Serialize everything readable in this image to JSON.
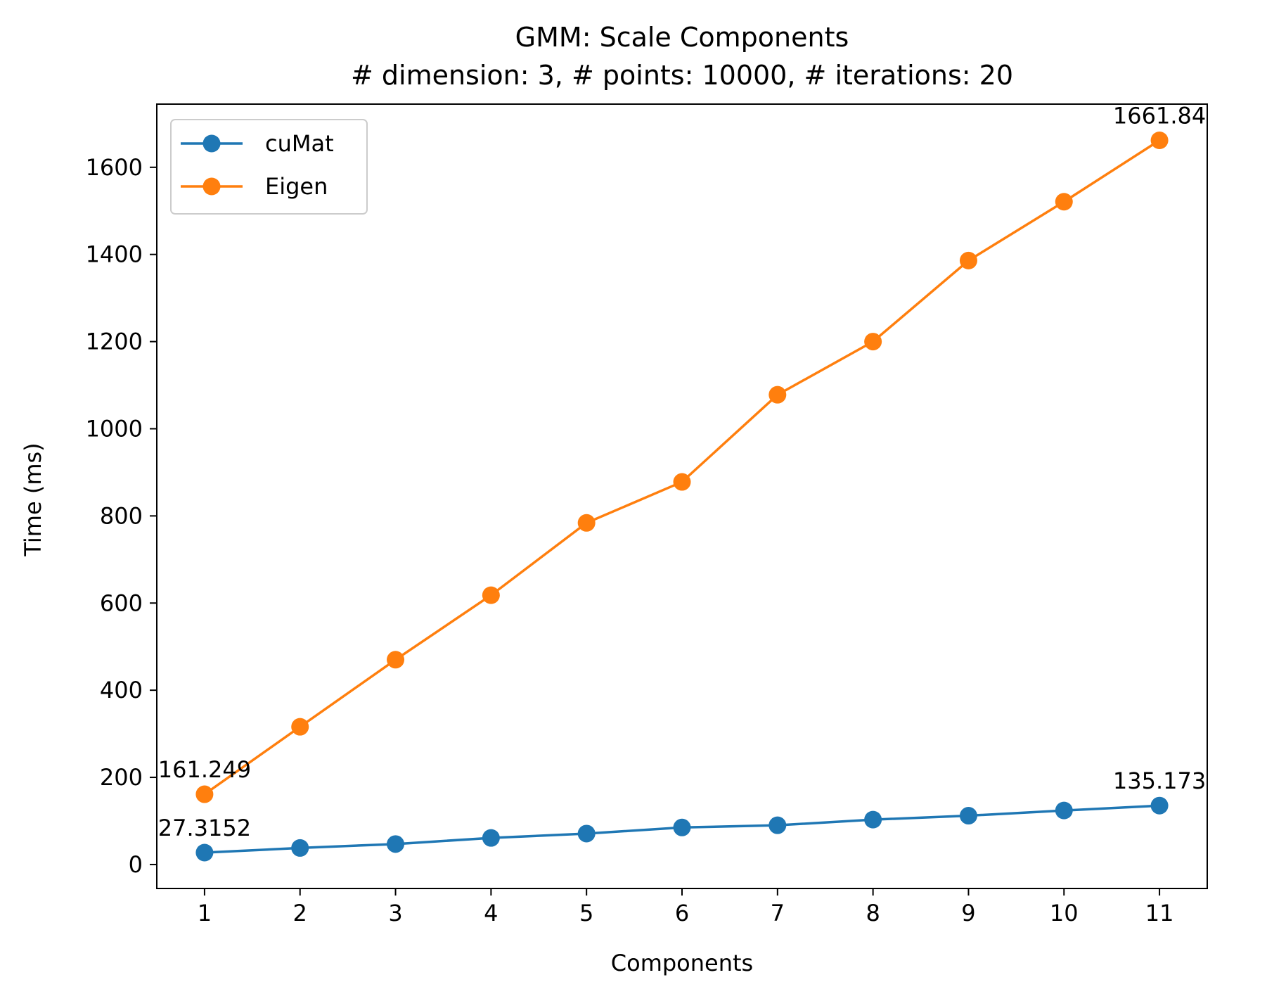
{
  "chart_data": {
    "type": "line",
    "title": "GMM: Scale Components",
    "subtitle": "# dimension: 3, # points: 10000, # iterations: 20",
    "xlabel": "Components",
    "ylabel": "Time (ms)",
    "x": [
      1,
      2,
      3,
      4,
      5,
      6,
      7,
      8,
      9,
      10,
      11
    ],
    "xticks": [
      "1",
      "2",
      "3",
      "4",
      "5",
      "6",
      "7",
      "8",
      "9",
      "10",
      "11"
    ],
    "yticks": [
      "0",
      "200",
      "400",
      "600",
      "800",
      "1000",
      "1200",
      "1400",
      "1600"
    ],
    "ytick_values": [
      0,
      200,
      400,
      600,
      800,
      1000,
      1200,
      1400,
      1600
    ],
    "xlim": [
      0.5,
      11.5
    ],
    "ylim": [
      -55,
      1745
    ],
    "legend_position": "upper-left",
    "grid": false,
    "series": [
      {
        "name": "cuMat",
        "color": "#1f77b4",
        "values": [
          27.3152,
          38,
          47,
          61,
          71,
          85,
          90,
          103,
          112,
          124,
          135.173
        ]
      },
      {
        "name": "Eigen",
        "color": "#ff7f0e",
        "values": [
          161.249,
          316,
          470,
          618,
          784,
          878,
          1078,
          1200,
          1386,
          1521,
          1661.84
        ]
      }
    ],
    "annotations": [
      {
        "text": "27.3152",
        "series": 0,
        "index": 0
      },
      {
        "text": "135.173",
        "series": 0,
        "index": 10
      },
      {
        "text": "161.249",
        "series": 1,
        "index": 0
      },
      {
        "text": "1661.84",
        "series": 1,
        "index": 10
      }
    ]
  }
}
